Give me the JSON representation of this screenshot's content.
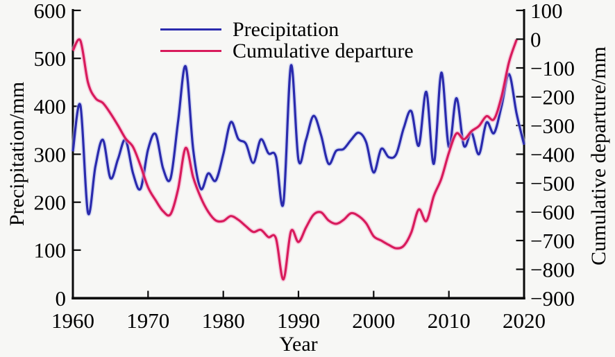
{
  "figure": {
    "xlabel": "Year",
    "ylabel_left": "Precipitation/mm",
    "ylabel_right": "Cumulative departure/mm",
    "background": "#f7f7f5",
    "axis_color": "#0a0a0a"
  },
  "legend": {
    "position": "top-center-inside",
    "items": [
      {
        "label": "Precipitation",
        "color": "#2a2aad"
      },
      {
        "label": "Cumulative departure",
        "color": "#d81b5c"
      }
    ]
  },
  "chart_data": {
    "type": "line",
    "title": "",
    "xlabel": "Year",
    "grid": false,
    "xlim": [
      1960,
      2020
    ],
    "x_ticks": [
      1960,
      1970,
      1980,
      1990,
      2000,
      2010,
      2020
    ],
    "left_axis": {
      "label": "Precipitation/mm",
      "lim": [
        0,
        600
      ],
      "ticks": [
        0,
        100,
        200,
        300,
        400,
        500,
        600
      ]
    },
    "right_axis": {
      "label": "Cumulative departure/mm",
      "lim": [
        -900,
        100
      ],
      "ticks": [
        100,
        0,
        -100,
        -200,
        -300,
        -400,
        -500,
        -600,
        -700,
        -800,
        -900
      ]
    },
    "series": [
      {
        "name": "Precipitation",
        "axis": "left",
        "color": "#2a2aad",
        "halo": "#b9c3ee",
        "x_start_year": 1960,
        "x_step": 1,
        "values": [
          306,
          402,
          178,
          275,
          330,
          250,
          290,
          330,
          260,
          228,
          310,
          342,
          270,
          250,
          370,
          483,
          310,
          228,
          260,
          245,
          300,
          367,
          332,
          322,
          282,
          331,
          302,
          295,
          198,
          485,
          288,
          330,
          380,
          340,
          280,
          307,
          311,
          330,
          345,
          325,
          262,
          311,
          294,
          300,
          355,
          390,
          318,
          430,
          280,
          470,
          315,
          417,
          318,
          345,
          300,
          366,
          344,
          400,
          467,
          385,
          320
        ]
      },
      {
        "name": "Cumulative departure",
        "axis": "right",
        "color": "#d81b5c",
        "halo": "#f6a8c8",
        "x_start_year": 1960,
        "x_step": 1,
        "values": [
          -40,
          -5,
          -150,
          -205,
          -222,
          -258,
          -300,
          -345,
          -375,
          -440,
          -515,
          -560,
          -598,
          -608,
          -520,
          -378,
          -480,
          -550,
          -600,
          -630,
          -632,
          -615,
          -628,
          -650,
          -670,
          -663,
          -688,
          -692,
          -835,
          -668,
          -705,
          -655,
          -610,
          -602,
          -630,
          -642,
          -628,
          -605,
          -615,
          -640,
          -685,
          -700,
          -715,
          -727,
          -718,
          -672,
          -592,
          -632,
          -545,
          -485,
          -395,
          -328,
          -348,
          -320,
          -302,
          -268,
          -278,
          -200,
          -80,
          -2
        ]
      }
    ]
  }
}
